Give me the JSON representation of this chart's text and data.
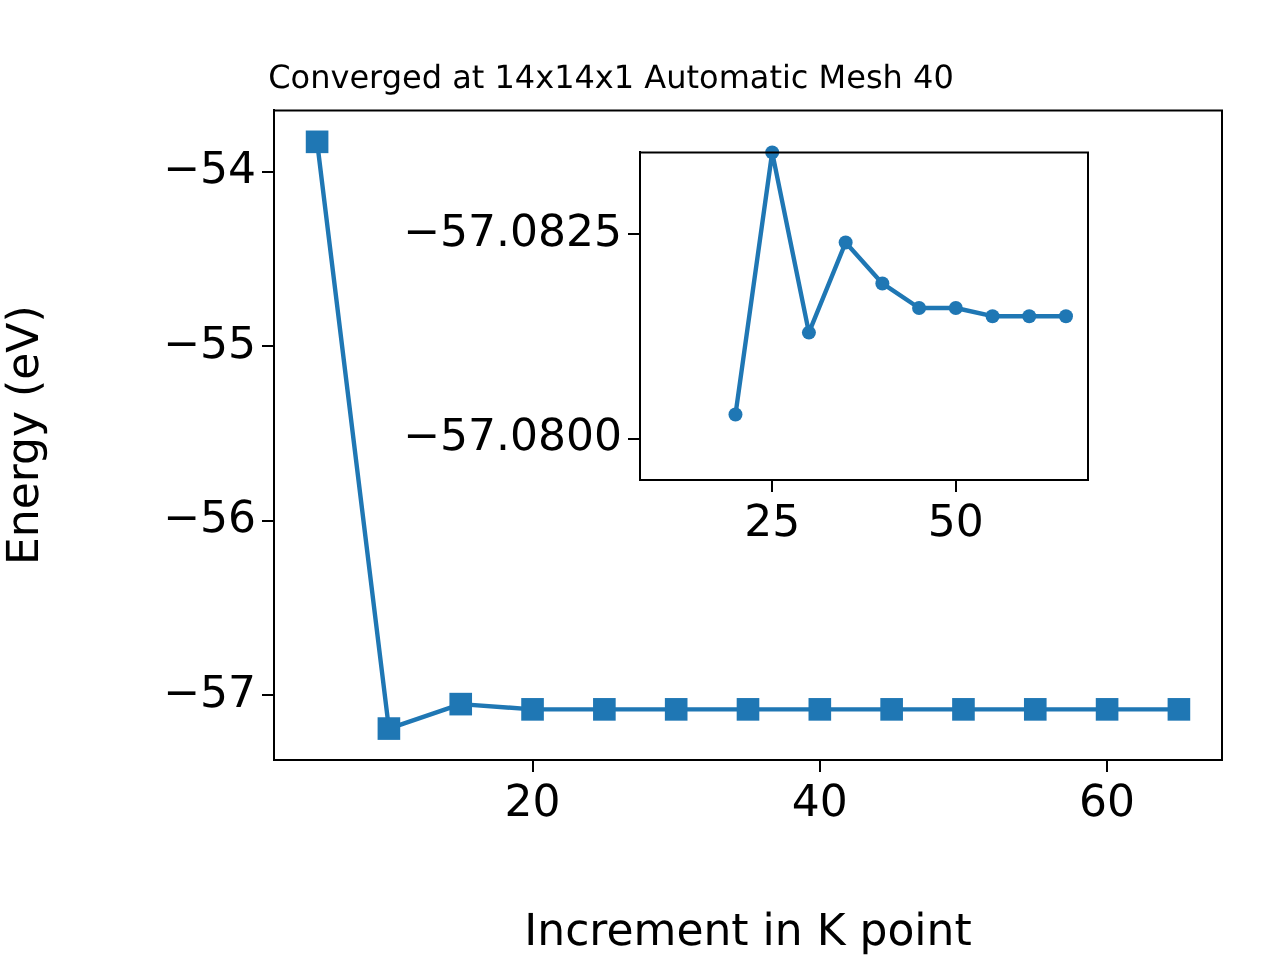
{
  "chart_data": [
    {
      "type": "line",
      "title": "Converged at 14x14x1 Automatic Mesh 40",
      "xlabel": "Increment in K point",
      "ylabel": "Energy (eV)",
      "x": [
        5,
        10,
        15,
        20,
        25,
        30,
        35,
        40,
        45,
        50,
        55,
        60,
        65
      ],
      "series": [
        {
          "color": "#1f77b4",
          "values": [
            -53.83,
            -57.19,
            -57.05,
            -57.08,
            -57.08,
            -57.08,
            -57.08,
            -57.08,
            -57.08,
            -57.08,
            -57.08,
            -57.08,
            -57.08
          ]
        }
      ],
      "xlim": [
        2,
        68
      ],
      "xticks": [
        20,
        40,
        60
      ],
      "ylim": [
        -57.37,
        -53.65
      ],
      "yticks": [
        -57,
        -56,
        -55,
        -54
      ],
      "marker": "square",
      "grid": false,
      "legend": false
    },
    {
      "type": "line",
      "x": [
        20,
        25,
        30,
        35,
        40,
        45,
        50,
        55,
        60,
        65
      ],
      "series": [
        {
          "color": "#1f77b4",
          "values": [
            -57.0803,
            -57.0835,
            -57.0813,
            -57.0824,
            -57.0819,
            -57.0816,
            -57.0816,
            -57.0815,
            -57.0815,
            -57.0815
          ]
        }
      ],
      "xlim": [
        7,
        68
      ],
      "xticks": [
        25,
        50
      ],
      "ylim": [
        -57.0795,
        -57.0835
      ],
      "yticks": [
        {
          "value": -57.0825,
          "label": "−57.0825"
        },
        {
          "value": -57.08,
          "label": "−57.0800"
        }
      ],
      "marker": "circle",
      "grid": false,
      "legend": false
    }
  ]
}
